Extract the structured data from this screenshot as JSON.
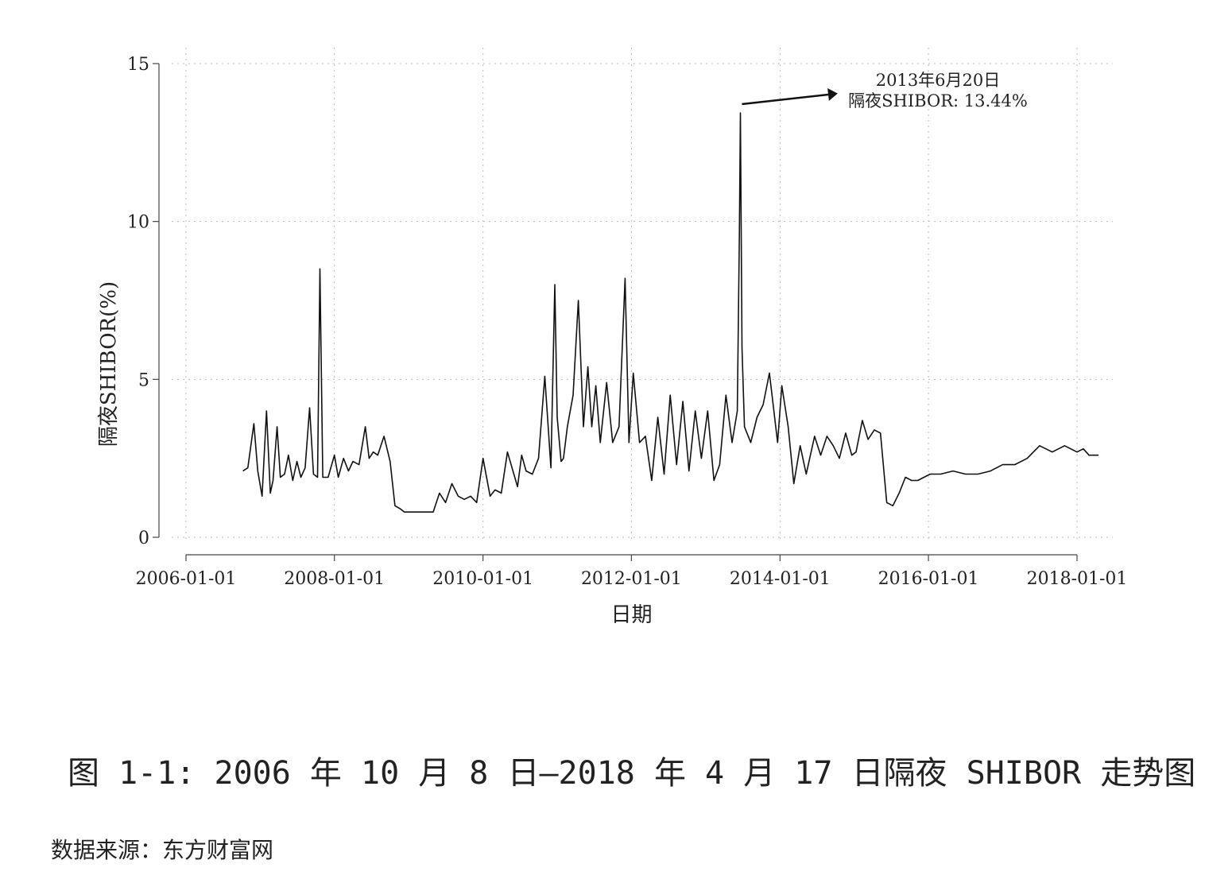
{
  "chart_data": {
    "type": "line",
    "xlabel": "日期",
    "ylabel": "隔夜SHIBOR(%)",
    "ylim": [
      0,
      15
    ],
    "yticks": [
      0,
      5,
      10,
      15
    ],
    "xlim": [
      "2006-01-01",
      "2018-04-17"
    ],
    "xticks": [
      "2006-01-01",
      "2008-01-01",
      "2010-01-01",
      "2012-01-01",
      "2014-01-01",
      "2016-01-01",
      "2018-01-01"
    ],
    "grid": true,
    "series": [
      {
        "x": [
          "2006-10-08",
          "2006-11-01",
          "2006-12-01",
          "2006-12-20",
          "2007-01-10",
          "2007-02-01",
          "2007-02-20",
          "2007-03-05",
          "2007-03-25",
          "2007-04-10",
          "2007-05-01",
          "2007-05-20",
          "2007-06-10",
          "2007-07-01",
          "2007-07-20",
          "2007-08-10",
          "2007-09-01",
          "2007-09-20",
          "2007-10-10",
          "2007-10-22",
          "2007-11-05",
          "2007-12-01",
          "2008-01-01",
          "2008-01-20",
          "2008-02-15",
          "2008-03-10",
          "2008-04-01",
          "2008-05-01",
          "2008-06-01",
          "2008-06-20",
          "2008-07-10",
          "2008-08-01",
          "2008-09-01",
          "2008-10-01",
          "2008-10-25",
          "2008-11-20",
          "2008-12-10",
          "2009-01-01",
          "2009-03-01",
          "2009-05-01",
          "2009-06-01",
          "2009-07-01",
          "2009-08-01",
          "2009-09-01",
          "2009-10-01",
          "2009-11-01",
          "2009-12-01",
          "2010-01-01",
          "2010-02-05",
          "2010-03-01",
          "2010-04-01",
          "2010-05-01",
          "2010-06-20",
          "2010-07-10",
          "2010-08-01",
          "2010-09-01",
          "2010-10-01",
          "2010-11-01",
          "2010-12-01",
          "2010-12-20",
          "2011-01-01",
          "2011-01-20",
          "2011-02-01",
          "2011-02-20",
          "2011-03-20",
          "2011-04-15",
          "2011-05-10",
          "2011-06-01",
          "2011-06-20",
          "2011-07-10",
          "2011-08-01",
          "2011-09-01",
          "2011-10-01",
          "2011-11-01",
          "2011-12-01",
          "2011-12-20",
          "2012-01-10",
          "2012-02-10",
          "2012-03-10",
          "2012-04-10",
          "2012-05-10",
          "2012-06-10",
          "2012-07-10",
          "2012-08-10",
          "2012-09-10",
          "2012-10-10",
          "2012-11-10",
          "2012-12-10",
          "2013-01-10",
          "2013-02-10",
          "2013-03-10",
          "2013-04-10",
          "2013-05-10",
          "2013-06-05",
          "2013-06-15",
          "2013-06-20",
          "2013-06-28",
          "2013-07-10",
          "2013-08-10",
          "2013-09-10",
          "2013-10-10",
          "2013-11-10",
          "2013-12-20",
          "2014-01-10",
          "2014-02-10",
          "2014-03-10",
          "2014-04-10",
          "2014-05-10",
          "2014-06-20",
          "2014-07-20",
          "2014-08-20",
          "2014-09-20",
          "2014-10-20",
          "2014-11-20",
          "2014-12-20",
          "2015-01-10",
          "2015-02-10",
          "2015-03-10",
          "2015-04-10",
          "2015-05-10",
          "2015-06-10",
          "2015-07-10",
          "2015-08-10",
          "2015-09-10",
          "2015-10-10",
          "2015-11-10",
          "2015-12-10",
          "2016-01-10",
          "2016-03-01",
          "2016-05-01",
          "2016-07-01",
          "2016-09-01",
          "2016-11-01",
          "2017-01-01",
          "2017-03-01",
          "2017-05-01",
          "2017-07-01",
          "2017-09-01",
          "2017-11-01",
          "2018-01-01",
          "2018-02-01",
          "2018-03-01",
          "2018-04-17"
        ],
        "y": [
          2.1,
          2.2,
          3.6,
          2.1,
          1.3,
          4.0,
          1.4,
          1.8,
          3.5,
          1.9,
          2.0,
          2.6,
          1.8,
          2.4,
          1.9,
          2.2,
          4.1,
          2.0,
          1.9,
          8.5,
          1.9,
          1.9,
          2.6,
          1.9,
          2.5,
          2.1,
          2.4,
          2.3,
          3.5,
          2.5,
          2.7,
          2.6,
          3.2,
          2.4,
          1.0,
          0.9,
          0.8,
          0.8,
          0.8,
          0.8,
          1.4,
          1.1,
          1.7,
          1.3,
          1.2,
          1.3,
          1.1,
          2.5,
          1.3,
          1.5,
          1.4,
          2.7,
          1.6,
          2.6,
          2.1,
          2.0,
          2.5,
          5.1,
          2.2,
          8.0,
          3.8,
          2.4,
          2.5,
          3.5,
          4.5,
          7.5,
          3.5,
          5.4,
          3.5,
          4.8,
          3.0,
          4.9,
          3.0,
          3.5,
          8.2,
          3.0,
          5.2,
          3.0,
          3.2,
          1.8,
          3.8,
          2.0,
          4.5,
          2.3,
          4.3,
          2.1,
          4.0,
          2.5,
          4.0,
          1.8,
          2.3,
          4.5,
          3.0,
          4.0,
          9.6,
          13.44,
          6.0,
          3.5,
          3.0,
          3.8,
          4.2,
          5.2,
          3.0,
          4.8,
          3.5,
          1.7,
          2.9,
          2.0,
          3.2,
          2.6,
          3.2,
          2.9,
          2.5,
          3.3,
          2.6,
          2.7,
          3.7,
          3.1,
          3.4,
          3.3,
          1.1,
          1.0,
          1.4,
          1.9,
          1.8,
          1.8,
          1.9,
          2.0,
          2.0,
          2.1,
          2.0,
          2.0,
          2.1,
          2.3,
          2.3,
          2.5,
          2.9,
          2.7,
          2.9,
          2.7,
          2.8,
          2.6,
          2.6
        ]
      }
    ],
    "annotation": {
      "x": "2013-06-20",
      "y": 13.44,
      "line1": "2013年6月20日",
      "line2": "隔夜SHIBOR: 13.44%"
    }
  },
  "figure_caption": "图 1-1: 2006 年 10 月 8 日—2018 年 4 月 17 日隔夜 SHIBOR 走势图",
  "source_note": "数据来源：东方财富网"
}
